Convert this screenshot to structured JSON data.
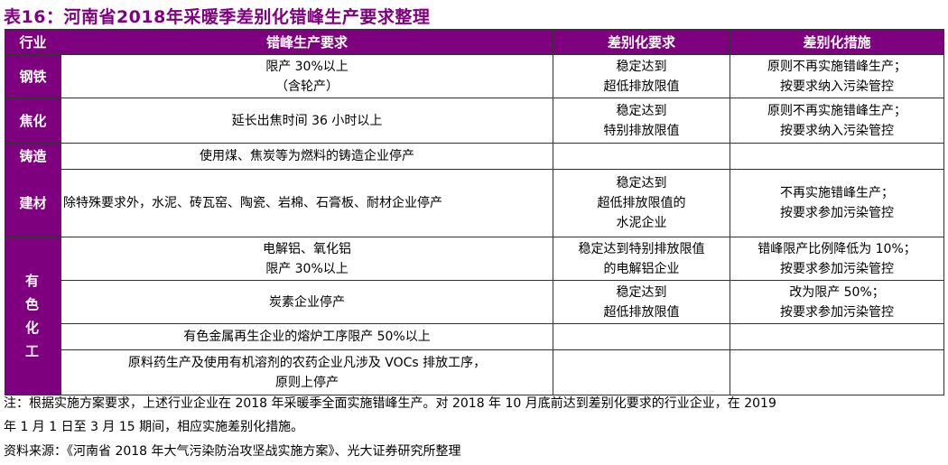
{
  "title": "表16：河南省2018年采暖季差别化错峰生产要求整理",
  "table": {
    "headers": [
      "行业",
      "错峰生产要求",
      "差别化要求",
      "差别化措施"
    ],
    "rows": [
      {
        "industry": "钢铁",
        "requirement": [
          "限产 30%以上",
          "（含轮产）"
        ],
        "diff_req": [
          "稳定达到",
          "超低排放限值"
        ],
        "measure": [
          "原则不再实施错峰生产；",
          "按要求纳入污染管控"
        ]
      },
      {
        "industry": "焦化",
        "requirement": [
          "延长出焦时间 36 小时以上"
        ],
        "diff_req": [
          "稳定达到",
          "特别排放限值"
        ],
        "measure": [
          "原则不再实施错峰生产；",
          "按要求纳入污染管控"
        ]
      },
      {
        "industry": "铸造",
        "requirement": [
          "使用煤、焦炭等为燃料的铸造企业停产"
        ],
        "diff_req": [],
        "measure": []
      },
      {
        "industry": "建材",
        "requirement": [
          "除特殊要求外，水泥、砖瓦窑、陶瓷、岩棉、石膏板、耐材企业停产"
        ],
        "diff_req": [
          "稳定达到",
          "超低排放限值的",
          "水泥企业"
        ],
        "measure": [
          "不再实施错峰生产；",
          "按要求参加污染管控"
        ]
      },
      {
        "industry": "有色化工",
        "industry_lines": [
          "有色",
          "化工"
        ],
        "requirement": [
          "电解铝、氧化铝",
          "限产 30%以上"
        ],
        "diff_req": [
          "稳定达到特别排放限值",
          "的电解铝企业"
        ],
        "measure": [
          "错峰限产比例降低为 10%；",
          "按要求参加污染管控"
        ]
      },
      {
        "requirement": [
          "炭素企业停产"
        ],
        "diff_req": [
          "稳定达到",
          "超低排放限值"
        ],
        "measure": [
          "改为限产 50%；",
          "按要求参加污染管控"
        ]
      },
      {
        "requirement": [
          "有色金属再生企业的熔炉工序限产 50%以上"
        ],
        "diff_req": [],
        "measure": []
      },
      {
        "requirement": [
          "原料药生产及使用有机溶剂的农药企业凡涉及 VOCs 排放工序，",
          "原则上停产"
        ],
        "diff_req": [],
        "measure": []
      }
    ]
  },
  "notes": {
    "line1": "注：根据实施方案要求，上述行业企业在 2018 年采暖季全面实施错峰生产。对 2018 年 10 月底前达到差别化要求的行业企业，在 2019",
    "line2": "年 1 月 1 日至 3 月 15 期间，相应实施差别化措施。",
    "source": "资料来源：《河南省 2018 年大气污染防治攻坚战实施方案》、光大证券研究所整理"
  },
  "colors": {
    "accent": "#7f007f"
  }
}
